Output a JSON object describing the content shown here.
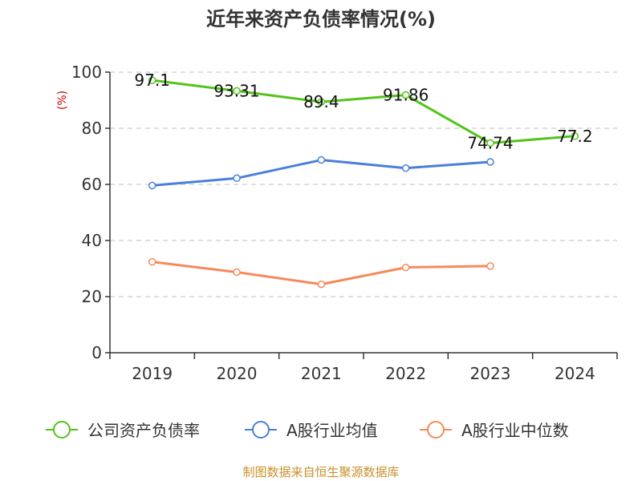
{
  "chart_data": {
    "type": "line",
    "title": "近年来资产负债率情况(%)",
    "ylabel": "(%)",
    "xlabel": "",
    "categories": [
      "2019",
      "2020",
      "2021",
      "2022",
      "2023",
      "2024"
    ],
    "ylim": [
      0,
      100
    ],
    "yticks": [
      0,
      20,
      40,
      60,
      80,
      100
    ],
    "grid": true,
    "legend_position": "bottom",
    "series": [
      {
        "name": "公司资产负债率",
        "color": "#52c41a",
        "values": [
          97.1,
          93.31,
          89.4,
          91.86,
          74.74,
          77.2
        ],
        "labels": [
          "97.1",
          "93.31",
          "89.4",
          "91.86",
          "74.74",
          "77.2"
        ]
      },
      {
        "name": "A股行业均值",
        "color": "#4a7fdb",
        "values": [
          59.6,
          62.2,
          68.7,
          65.8,
          68.0,
          null
        ]
      },
      {
        "name": "A股行业中位数",
        "color": "#f58a5a",
        "values": [
          32.4,
          28.7,
          24.4,
          30.4,
          30.9,
          null
        ]
      }
    ]
  },
  "footer": "制图数据来自恒生聚源数据库"
}
